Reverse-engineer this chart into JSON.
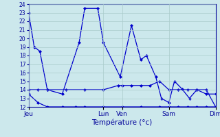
{
  "background_color": "#cce8ec",
  "grid_color": "#aacccc",
  "line_color": "#0000cc",
  "xlabel": "Température (°c)",
  "ylim": [
    12,
    24
  ],
  "xlim": [
    0,
    100
  ],
  "day_positions": [
    0,
    40,
    50,
    75,
    100
  ],
  "day_labels": [
    "Jeu",
    "Lun",
    "Ven",
    "Sam",
    "Dim"
  ],
  "s1_x": [
    0,
    3,
    6,
    10,
    18,
    27,
    30,
    37,
    40,
    49,
    55,
    60,
    63,
    68,
    71,
    75,
    78,
    82,
    86,
    90,
    95,
    100
  ],
  "s1_y": [
    23,
    19,
    18.5,
    14,
    13.5,
    19.5,
    23.5,
    23.5,
    19.5,
    15.5,
    21.5,
    17.5,
    18,
    15.5,
    13,
    12.5,
    15,
    14.1,
    13,
    14,
    14,
    12
  ],
  "s2_x": [
    0,
    5,
    10,
    20,
    30,
    40,
    48,
    50,
    55,
    60,
    65,
    70,
    75,
    80,
    85,
    90,
    95,
    100
  ],
  "s2_y": [
    14,
    14,
    14,
    14,
    14,
    14,
    14.5,
    14.5,
    14.5,
    14.5,
    14.5,
    15,
    14,
    14,
    14,
    14,
    13.5,
    13.5
  ],
  "s3_x": [
    0,
    5,
    10,
    18,
    25,
    30,
    40,
    50,
    60,
    70,
    75,
    80,
    85,
    90,
    95,
    100
  ],
  "s3_y": [
    13.5,
    12.5,
    12,
    12,
    12,
    12,
    12,
    12,
    12,
    12,
    12,
    12,
    12,
    12,
    12,
    12
  ]
}
